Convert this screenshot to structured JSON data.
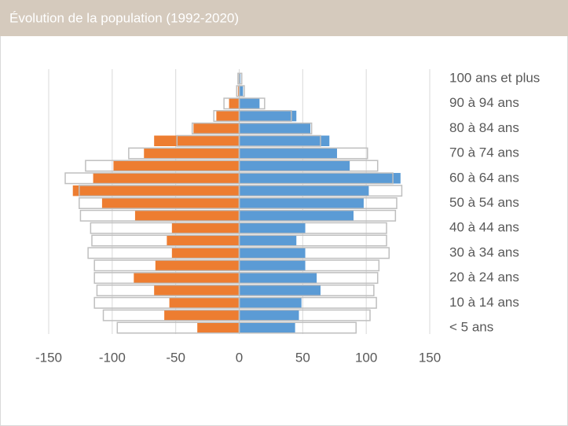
{
  "chart_data": {
    "type": "pyramid",
    "title": "Évolution de la population (1992-2020)",
    "categories": [
      "< 5 ans",
      null,
      "10 à 14 ans",
      null,
      "20 à 24 ans",
      null,
      "30 à 34 ans",
      null,
      "40 à 44 ans",
      null,
      "50 à 54 ans",
      null,
      "60 à 64 ans",
      null,
      "70 à 74 ans",
      null,
      "80 à 84 ans",
      null,
      "90 à 94 ans",
      null,
      "100 ans et plus"
    ],
    "series": [
      {
        "color": "#ed7d31",
        "filled": true,
        "values": [
          -33,
          -59,
          -55,
          -67,
          -83,
          -66,
          -53,
          -57,
          -53,
          -82,
          -108,
          -131,
          -115,
          -99,
          -75,
          -67,
          -36,
          -18,
          -8,
          -1,
          0
        ]
      },
      {
        "color": "#5b9bd5",
        "filled": true,
        "values": [
          44,
          47,
          49,
          64,
          61,
          52,
          52,
          45,
          52,
          90,
          98,
          102,
          127,
          87,
          77,
          71,
          56,
          45,
          16,
          3,
          1
        ]
      },
      {
        "color": "#bfbfbf",
        "filled": false,
        "values": [
          -96,
          -107,
          -114,
          -112,
          -114,
          -114,
          -119,
          -116,
          -117,
          -125,
          -126,
          -126,
          -137,
          -121,
          -87,
          -49,
          -37,
          -20,
          -12,
          -2,
          -1
        ]
      },
      {
        "color": "#bfbfbf",
        "filled": false,
        "values": [
          92,
          103,
          108,
          106,
          109,
          110,
          118,
          116,
          116,
          123,
          124,
          128,
          121,
          109,
          101,
          64,
          57,
          41,
          20,
          4,
          2
        ]
      }
    ],
    "xlim": [
      -150,
      150
    ],
    "xticks": [
      -150,
      -100,
      -50,
      0,
      50,
      100,
      150
    ],
    "grid": true
  }
}
